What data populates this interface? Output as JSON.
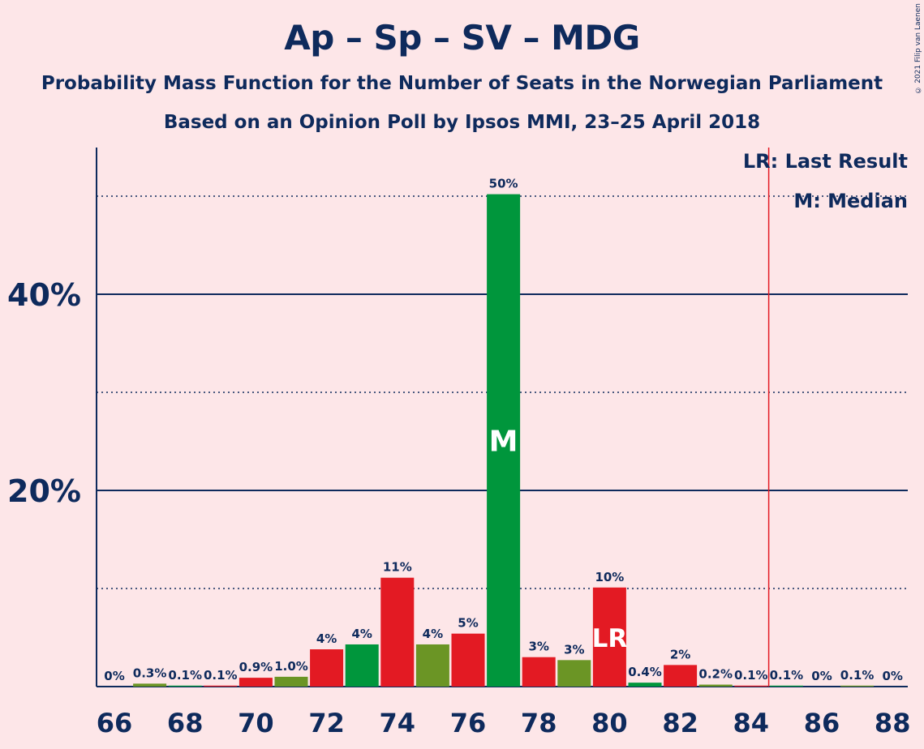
{
  "chart_data": {
    "type": "bar",
    "title": "Ap – Sp – SV – MDG",
    "subtitle_1": "Probability Mass Function for the Number of Seats in the Norwegian Parliament",
    "subtitle_2": "Based on an Opinion Poll by Ipsos MMI, 23–25 April 2018",
    "copyright": "© 2021 Filip van Laenen",
    "x": [
      66,
      67,
      68,
      69,
      70,
      71,
      72,
      73,
      74,
      75,
      76,
      77,
      78,
      79,
      80,
      81,
      82,
      83,
      84,
      85,
      86,
      87,
      88
    ],
    "values": [
      0,
      0.3,
      0.1,
      0.1,
      0.9,
      1.0,
      3.8,
      4.3,
      11.1,
      4.3,
      5.4,
      50.2,
      3.0,
      2.7,
      10.1,
      0.4,
      2.2,
      0.2,
      0.1,
      0.1,
      0,
      0.1,
      0
    ],
    "labels": [
      "0%",
      "0.3%",
      "0.1%",
      "0.1%",
      "0.9%",
      "1.0%",
      "4%",
      "4%",
      "11%",
      "4%",
      "5%",
      "50%",
      "3%",
      "3%",
      "10%",
      "0.4%",
      "2%",
      "0.2%",
      "0.1%",
      "0.1%",
      "0%",
      "0.1%",
      "0%"
    ],
    "colors": [
      "#e31a23",
      "#6b9525",
      "#00963c",
      "#e31a23",
      "#e31a23",
      "#6b9525",
      "#e31a23",
      "#00963c",
      "#e31a23",
      "#6b9525",
      "#e31a23",
      "#00963c",
      "#e31a23",
      "#6b9525",
      "#e31a23",
      "#00963c",
      "#e31a23",
      "#6b9525",
      "#e31a23",
      "#00963c",
      "#e31a23",
      "#6b9525",
      "#e31a23"
    ],
    "xticks": [
      66,
      68,
      70,
      72,
      74,
      76,
      78,
      80,
      82,
      84,
      86,
      88
    ],
    "ytick_labels": [
      {
        "value": 20,
        "label": "20%"
      },
      {
        "value": 40,
        "label": "40%"
      }
    ],
    "solid_gridlines": [
      20,
      40
    ],
    "dotted_gridlines": [
      10,
      30,
      50
    ],
    "ylim": [
      0,
      55
    ],
    "median_seat": 77,
    "median_marker": "M",
    "last_result_seat": 80,
    "last_result_marker": "LR",
    "majority_line_x": 84.5,
    "legend": [
      "LR: Last Result",
      "M: Median"
    ]
  }
}
